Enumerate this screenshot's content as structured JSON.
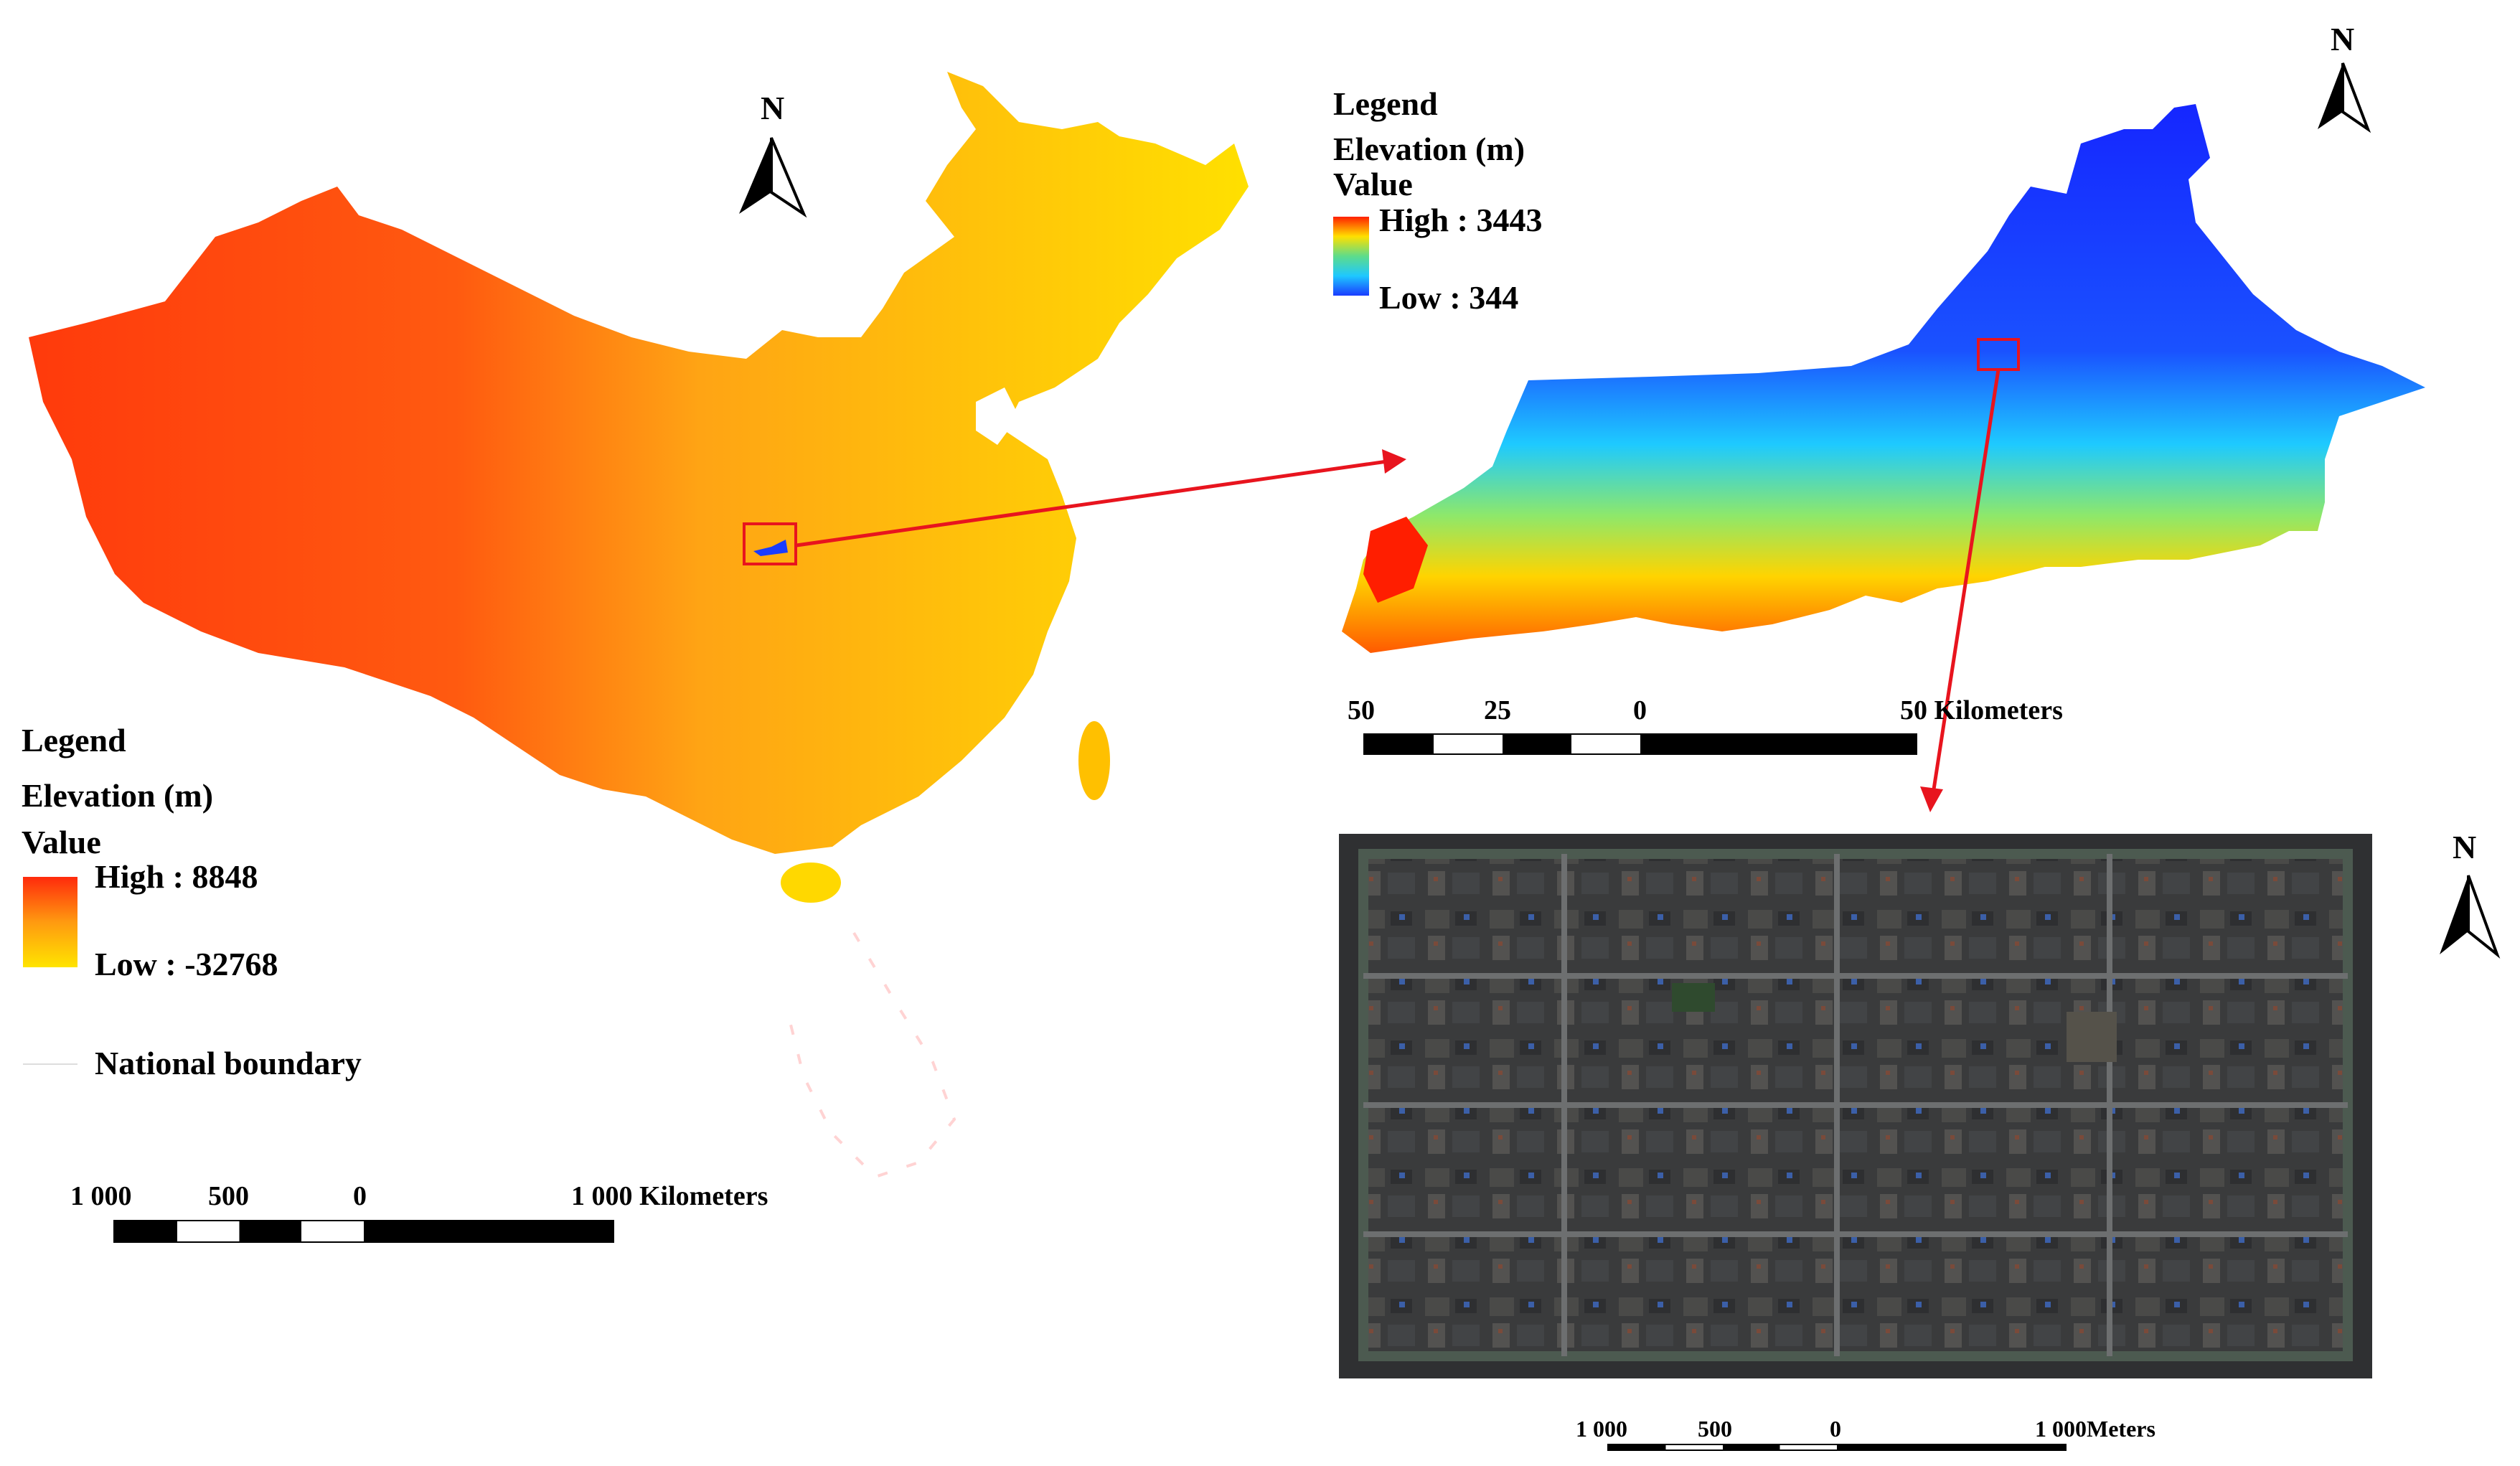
{
  "china_map": {
    "legend": {
      "title": "Legend",
      "field": "Elevation (m)",
      "value_label": "Value",
      "high_label": "High : 8848",
      "low_label": "Low : -32768",
      "boundary_label": "National boundary",
      "ramp_colors": [
        "#ff2a0c",
        "#ff9a10",
        "#ffe400"
      ]
    },
    "north_label": "N",
    "scale_bar": {
      "labels": [
        "1 000",
        "500",
        "0",
        "1 000 Kilometers"
      ]
    }
  },
  "region_map": {
    "legend": {
      "title": "Legend",
      "field": "Elevation (m)",
      "value_label": "Value",
      "high_label": "High : 3443",
      "low_label": "Low : 344",
      "ramp_colors": [
        "#ff2000",
        "#ffe000",
        "#5ddc8a",
        "#1ec8ff",
        "#1a3cff"
      ]
    },
    "north_label": "N",
    "scale_bar": {
      "labels": [
        "50",
        "25",
        "0",
        "50 Kilometers"
      ]
    }
  },
  "city_map": {
    "north_label": "N",
    "scale_bar": {
      "labels": [
        "1 000",
        "500",
        "0",
        "1 000Meters"
      ]
    }
  },
  "colors": {
    "arrow": "#e8141e",
    "highlight_box": "#e8141e"
  }
}
